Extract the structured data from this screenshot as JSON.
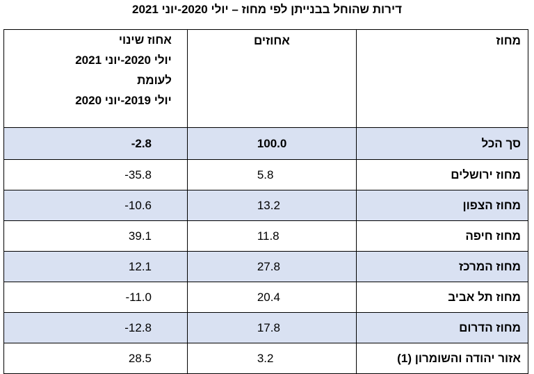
{
  "title": "דירות שהוחל בבנייתן לפי מחוז – יולי 2020-יוני 2021",
  "table": {
    "header": [
      "מחוז",
      "אחוזים",
      [
        "אחוז שינוי",
        "יולי 2020-יוני 2021",
        "לעומת",
        "יולי 2019-יוני 2020"
      ]
    ],
    "rows": [
      [
        "סך הכל",
        "100.0",
        "-2.8"
      ],
      [
        "מחוז ירושלים",
        "5.8",
        "-35.8"
      ],
      [
        "מחוז הצפון",
        "13.2",
        "-10.6"
      ],
      [
        "מחוז חיפה",
        "11.8",
        "39.1"
      ],
      [
        "מחוז המרכז",
        "27.8",
        "12.1"
      ],
      [
        "מחוז תל אביב",
        "20.4",
        "-11.0"
      ],
      [
        "מחוז הדרום",
        "17.8",
        "-12.8"
      ],
      [
        "אזור יהודה והשומרון (1)",
        "3.2",
        "28.5"
      ]
    ]
  }
}
